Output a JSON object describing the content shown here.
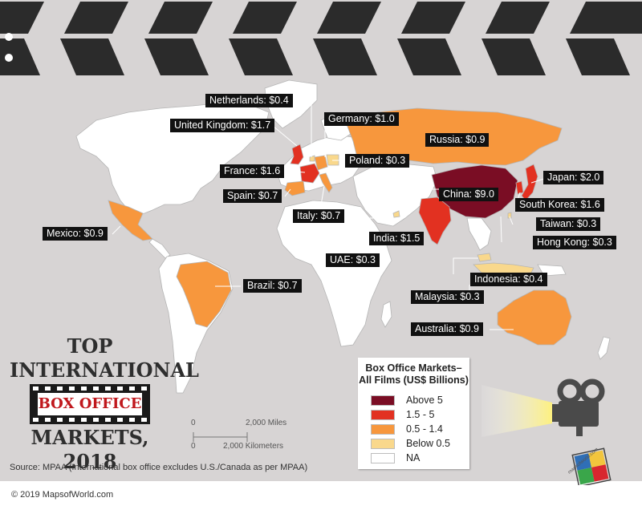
{
  "title": {
    "line1": "TOP",
    "line2": "INTERNATIONAL",
    "banner": "BOX OFFICE",
    "line3": "MARKETS, 2018"
  },
  "legend": {
    "title_line1": "Box Office Markets–",
    "title_line2": "All Films (US$ Billions)",
    "items": [
      {
        "label": "Above 5",
        "color": "#7a0d24"
      },
      {
        "label": "1.5 - 5",
        "color": "#e23121"
      },
      {
        "label": "0.5 - 1.4",
        "color": "#f7973d"
      },
      {
        "label": "Below 0.5",
        "color": "#f9d88c"
      },
      {
        "label": "NA",
        "color": "#ffffff"
      }
    ]
  },
  "scale": {
    "miles_zero": "0",
    "miles_label": "2,000 Miles",
    "km_zero": "0",
    "km_label": "2,000 Kilometers"
  },
  "callouts": {
    "netherlands": "Netherlands: $0.4",
    "uk": "United Kingdom: $1.7",
    "germany": "Germany: $1.0",
    "russia": "Russia: $0.9",
    "poland": "Poland: $0.3",
    "france": "France: $1.6",
    "spain": "Spain: $0.7",
    "italy": "Italy: $0.7",
    "japan": "Japan: $2.0",
    "china": "China: $9.0",
    "south_korea": "South Korea: $1.6",
    "taiwan": "Taiwan: $0.3",
    "hong_kong": "Hong Kong: $0.3",
    "mexico": "Mexico: $0.9",
    "india": "India: $1.5",
    "uae": "UAE: $0.3",
    "indonesia": "Indonesia: $0.4",
    "brazil": "Brazil: $0.7",
    "malaysia": "Malaysia: $0.3",
    "australia": "Australia: $0.9"
  },
  "source": "Source: MPAA (International box office excludes U.S./Canada as per MPAA)",
  "copyright": "© 2019 MapsofWorld.com",
  "logo_text": "mapsofworld.com",
  "colors": {
    "background": "#d7d4d4",
    "land": "#ffffff",
    "above_5": "#7a0d24",
    "r1_5_5": "#e23121",
    "r0_5_1_4": "#f7973d",
    "below_0_5": "#f9d88c",
    "callout_bg": "#111111",
    "banner_text": "#c0181d"
  }
}
